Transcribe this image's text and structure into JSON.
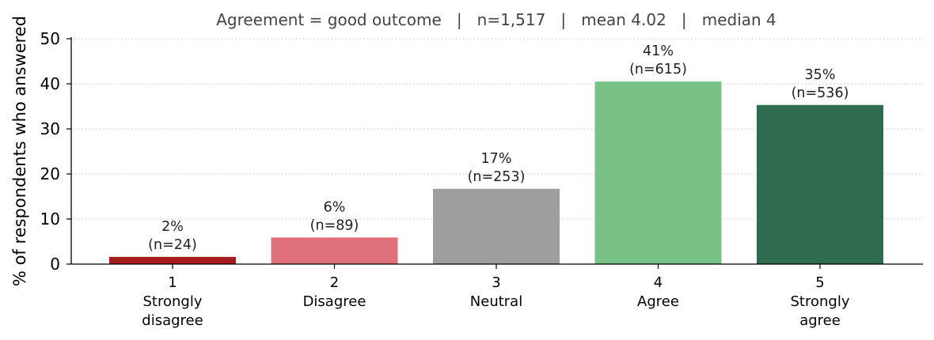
{
  "chart_data": {
    "type": "bar",
    "title": "Agreement = good outcome   |   n=1,517   |   mean 4.02   |   median 4",
    "ylabel": "% of respondents who answered",
    "xlabel": "",
    "ylim": [
      0,
      50
    ],
    "yticks": [
      "0",
      "10",
      "20",
      "30",
      "40",
      "50"
    ],
    "grid": "horizontal dotted",
    "categories": [
      {
        "code": "1",
        "name_line1": "Strongly",
        "name_line2": "disagree"
      },
      {
        "code": "2",
        "name_line1": "Disagree",
        "name_line2": ""
      },
      {
        "code": "3",
        "name_line1": "Neutral",
        "name_line2": ""
      },
      {
        "code": "4",
        "name_line1": "Agree",
        "name_line2": ""
      },
      {
        "code": "5",
        "name_line1": "Strongly",
        "name_line2": "agree"
      }
    ],
    "values": [
      1.6,
      5.9,
      16.7,
      40.5,
      35.3
    ],
    "data_labels": [
      {
        "pct": "2%",
        "count": "(n=24)"
      },
      {
        "pct": "6%",
        "count": "(n=89)"
      },
      {
        "pct": "17%",
        "count": "(n=253)"
      },
      {
        "pct": "41%",
        "count": "(n=615)"
      },
      {
        "pct": "35%",
        "count": "(n=536)"
      }
    ],
    "colors": [
      "#a51c1f",
      "#e0707a",
      "#9e9e9e",
      "#76c287",
      "#2e6b4f"
    ]
  }
}
